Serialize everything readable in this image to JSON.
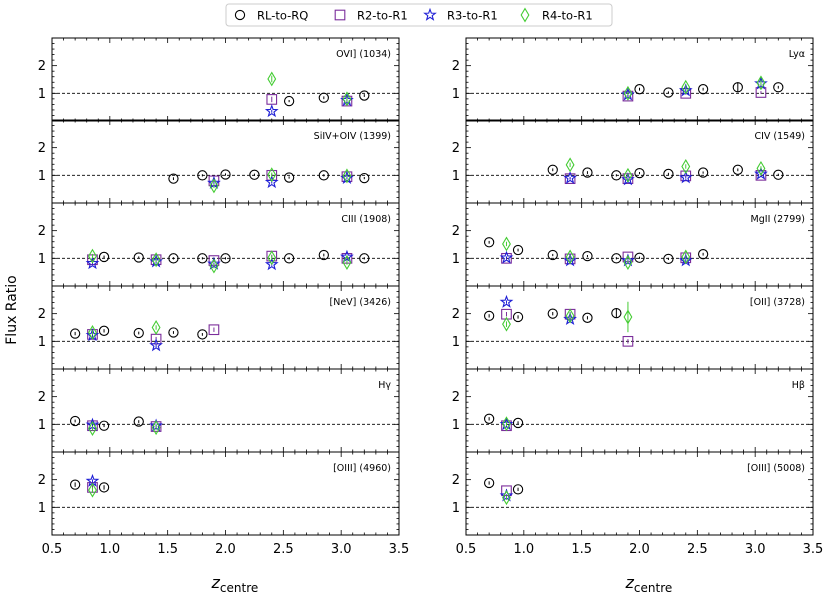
{
  "chart_data": {
    "type": "scatter",
    "ylabel": "Flux Ratio",
    "xlabel": "z",
    "xlabel_sub": "centre",
    "xlim": [
      0.5,
      3.5
    ],
    "ylim": [
      0,
      3
    ],
    "xticks": [
      "0.5",
      "1.0",
      "1.5",
      "2.0",
      "2.5",
      "3.0",
      "3.5"
    ],
    "yticks": [
      "1",
      "2"
    ],
    "reference_line": 1,
    "legend": {
      "position": "top-center",
      "entries": [
        {
          "label": "RL-to-RQ",
          "marker": "circle",
          "color": "#000000"
        },
        {
          "label": "R2-to-R1",
          "marker": "square",
          "color": "#7b2d9b"
        },
        {
          "label": "R3-to-R1",
          "marker": "star",
          "color": "#1f1fd6"
        },
        {
          "label": "R4-to-R1",
          "marker": "diamond",
          "color": "#44cc33"
        }
      ]
    },
    "panels": [
      {
        "label": "OVI] (1034)",
        "col": 0,
        "row": 0,
        "series": {
          "RL-to-RQ": [
            [
              2.55,
              0.72,
              0.04
            ],
            [
              2.85,
              0.84,
              0.05
            ],
            [
              3.2,
              0.92,
              0.05
            ]
          ],
          "R2-to-R1": [
            [
              2.4,
              0.78,
              0.1
            ],
            [
              3.05,
              0.72,
              0.08
            ]
          ],
          "R3-to-R1": [
            [
              2.4,
              0.35,
              0.05
            ],
            [
              3.05,
              0.75,
              0.05
            ]
          ],
          "R4-to-R1": [
            [
              2.4,
              1.52,
              0.12
            ],
            [
              3.05,
              0.8,
              0.1
            ]
          ]
        }
      },
      {
        "label": "Lyα",
        "col": 1,
        "row": 0,
        "series": {
          "RL-to-RQ": [
            [
              2.0,
              1.15,
              0.05
            ],
            [
              2.25,
              1.03,
              0.04
            ],
            [
              2.55,
              1.15,
              0.05
            ],
            [
              2.85,
              1.22,
              0.18
            ],
            [
              3.2,
              1.22,
              0.05
            ]
          ],
          "R2-to-R1": [
            [
              1.9,
              0.9,
              0.05
            ],
            [
              2.4,
              1.0,
              0.05
            ],
            [
              3.05,
              1.03,
              0.05
            ]
          ],
          "R3-to-R1": [
            [
              1.9,
              0.95,
              0.05
            ],
            [
              2.4,
              1.1,
              0.05
            ],
            [
              3.05,
              1.35,
              0.05
            ]
          ],
          "R4-to-R1": [
            [
              1.9,
              1.0,
              0.06
            ],
            [
              2.4,
              1.22,
              0.08
            ],
            [
              3.05,
              1.38,
              0.1
            ]
          ]
        }
      },
      {
        "label": "SiIV+OIV (1399)",
        "col": 0,
        "row": 1,
        "series": {
          "RL-to-RQ": [
            [
              1.55,
              0.88,
              0.05
            ],
            [
              1.8,
              1.0,
              0.04
            ],
            [
              2.0,
              1.03,
              0.04
            ],
            [
              2.25,
              1.02,
              0.04
            ],
            [
              2.55,
              0.92,
              0.04
            ],
            [
              2.85,
              1.0,
              0.04
            ],
            [
              3.2,
              0.9,
              0.04
            ]
          ],
          "R2-to-R1": [
            [
              1.9,
              0.8,
              0.06
            ],
            [
              2.4,
              1.0,
              0.05
            ],
            [
              3.05,
              0.95,
              0.05
            ]
          ],
          "R3-to-R1": [
            [
              1.9,
              0.72,
              0.05
            ],
            [
              2.4,
              0.75,
              0.05
            ],
            [
              3.05,
              0.9,
              0.05
            ]
          ],
          "R4-to-R1": [
            [
              1.9,
              0.62,
              0.08
            ],
            [
              2.4,
              1.02,
              0.08
            ],
            [
              3.05,
              0.98,
              0.06
            ]
          ]
        }
      },
      {
        "label": "CIV (1549)",
        "col": 1,
        "row": 1,
        "series": {
          "RL-to-RQ": [
            [
              1.25,
              1.2,
              0.05
            ],
            [
              1.55,
              1.1,
              0.05
            ],
            [
              1.8,
              1.0,
              0.04
            ],
            [
              2.0,
              1.08,
              0.04
            ],
            [
              2.25,
              1.05,
              0.04
            ],
            [
              2.55,
              1.1,
              0.04
            ],
            [
              2.85,
              1.2,
              0.05
            ],
            [
              3.2,
              1.02,
              0.04
            ]
          ],
          "R2-to-R1": [
            [
              1.4,
              0.88,
              0.04
            ],
            [
              1.9,
              0.88,
              0.04
            ],
            [
              2.4,
              0.98,
              0.04
            ],
            [
              3.05,
              1.0,
              0.04
            ]
          ],
          "R3-to-R1": [
            [
              1.4,
              0.9,
              0.04
            ],
            [
              1.9,
              0.85,
              0.04
            ],
            [
              2.4,
              0.92,
              0.04
            ],
            [
              3.05,
              1.05,
              0.04
            ]
          ],
          "R4-to-R1": [
            [
              1.4,
              1.38,
              0.08
            ],
            [
              1.9,
              1.0,
              0.06
            ],
            [
              2.4,
              1.32,
              0.08
            ],
            [
              3.05,
              1.25,
              0.08
            ]
          ]
        }
      },
      {
        "label": "CIII (1908)",
        "col": 0,
        "row": 2,
        "series": {
          "RL-to-RQ": [
            [
              0.95,
              1.05,
              0.05
            ],
            [
              1.25,
              1.03,
              0.04
            ],
            [
              1.55,
              1.0,
              0.04
            ],
            [
              1.8,
              1.0,
              0.04
            ],
            [
              2.0,
              1.0,
              0.04
            ],
            [
              2.55,
              1.0,
              0.04
            ],
            [
              2.85,
              1.12,
              0.05
            ],
            [
              3.2,
              1.0,
              0.04
            ]
          ],
          "R2-to-R1": [
            [
              0.85,
              0.95,
              0.05
            ],
            [
              1.4,
              0.95,
              0.05
            ],
            [
              1.9,
              0.92,
              0.05
            ],
            [
              2.4,
              1.08,
              0.05
            ],
            [
              3.05,
              1.0,
              0.05
            ]
          ],
          "R3-to-R1": [
            [
              0.85,
              0.82,
              0.05
            ],
            [
              1.4,
              0.88,
              0.05
            ],
            [
              1.9,
              0.8,
              0.05
            ],
            [
              2.4,
              0.78,
              0.05
            ],
            [
              3.05,
              1.05,
              0.05
            ]
          ],
          "R4-to-R1": [
            [
              0.85,
              1.08,
              0.08
            ],
            [
              1.4,
              0.95,
              0.08
            ],
            [
              1.9,
              0.72,
              0.08
            ],
            [
              2.4,
              1.02,
              0.08
            ],
            [
              3.05,
              0.85,
              0.08
            ]
          ]
        }
      },
      {
        "label": "MgII (2799)",
        "col": 1,
        "row": 2,
        "series": {
          "RL-to-RQ": [
            [
              0.7,
              1.58,
              0.05
            ],
            [
              0.95,
              1.3,
              0.05
            ],
            [
              1.25,
              1.12,
              0.04
            ],
            [
              1.55,
              1.08,
              0.04
            ],
            [
              1.8,
              1.0,
              0.04
            ],
            [
              2.0,
              1.02,
              0.04
            ],
            [
              2.25,
              0.98,
              0.04
            ],
            [
              2.55,
              1.15,
              0.05
            ]
          ],
          "R2-to-R1": [
            [
              0.85,
              1.0,
              0.05
            ],
            [
              1.4,
              0.98,
              0.05
            ],
            [
              1.9,
              1.05,
              0.05
            ],
            [
              2.4,
              1.02,
              0.05
            ]
          ],
          "R3-to-R1": [
            [
              0.85,
              1.02,
              0.05
            ],
            [
              1.4,
              0.92,
              0.05
            ],
            [
              1.9,
              0.92,
              0.05
            ],
            [
              2.4,
              0.92,
              0.05
            ]
          ],
          "R4-to-R1": [
            [
              0.85,
              1.52,
              0.08
            ],
            [
              1.4,
              1.05,
              0.06
            ],
            [
              1.9,
              0.85,
              0.06
            ],
            [
              2.4,
              1.05,
              0.06
            ]
          ]
        }
      },
      {
        "label": "[NeV] (3426)",
        "col": 0,
        "row": 3,
        "series": {
          "RL-to-RQ": [
            [
              0.7,
              1.28,
              0.06
            ],
            [
              0.95,
              1.38,
              0.06
            ],
            [
              1.25,
              1.3,
              0.05
            ],
            [
              1.55,
              1.32,
              0.05
            ],
            [
              1.8,
              1.25,
              0.05
            ]
          ],
          "R2-to-R1": [
            [
              0.85,
              1.25,
              0.08
            ],
            [
              1.4,
              1.08,
              0.08
            ],
            [
              1.9,
              1.42,
              0.08
            ]
          ],
          "R3-to-R1": [
            [
              0.85,
              1.22,
              0.06
            ],
            [
              1.4,
              0.85,
              0.06
            ]
          ],
          "R4-to-R1": [
            [
              0.85,
              1.32,
              0.08
            ],
            [
              1.4,
              1.5,
              0.08
            ]
          ]
        }
      },
      {
        "label": "[OII] (3728)",
        "col": 1,
        "row": 3,
        "series": {
          "RL-to-RQ": [
            [
              0.7,
              1.92,
              0.06
            ],
            [
              0.95,
              1.88,
              0.06
            ],
            [
              1.25,
              2.0,
              0.06
            ],
            [
              1.55,
              1.85,
              0.06
            ],
            [
              1.8,
              2.02,
              0.18
            ]
          ],
          "R2-to-R1": [
            [
              0.85,
              1.98,
              0.08
            ],
            [
              1.4,
              1.98,
              0.08
            ],
            [
              1.9,
              1.0,
              0.08
            ]
          ],
          "R3-to-R1": [
            [
              0.85,
              2.42,
              0.06
            ],
            [
              1.4,
              1.8,
              0.06
            ]
          ],
          "R4-to-R1": [
            [
              0.85,
              1.62,
              0.1
            ],
            [
              1.4,
              1.92,
              0.1
            ],
            [
              1.9,
              1.88,
              0.55
            ]
          ]
        }
      },
      {
        "label": "Hγ",
        "col": 0,
        "row": 4,
        "series": {
          "RL-to-RQ": [
            [
              0.7,
              1.12,
              0.05
            ],
            [
              0.95,
              0.95,
              0.05
            ],
            [
              1.25,
              1.1,
              0.05
            ]
          ],
          "R2-to-R1": [
            [
              0.85,
              0.95,
              0.06
            ],
            [
              1.4,
              0.92,
              0.06
            ]
          ],
          "R3-to-R1": [
            [
              0.85,
              0.98,
              0.05
            ],
            [
              1.4,
              0.95,
              0.05
            ]
          ],
          "R4-to-R1": [
            [
              0.85,
              0.85,
              0.08
            ],
            [
              1.4,
              0.88,
              0.08
            ]
          ]
        }
      },
      {
        "label": "Hβ",
        "col": 1,
        "row": 4,
        "series": {
          "RL-to-RQ": [
            [
              0.7,
              1.2,
              0.06
            ],
            [
              0.95,
              1.05,
              0.06
            ]
          ],
          "R2-to-R1": [
            [
              0.85,
              0.95,
              0.06
            ]
          ],
          "R3-to-R1": [
            [
              0.85,
              1.0,
              0.05
            ]
          ],
          "R4-to-R1": [
            [
              0.85,
              1.02,
              0.08
            ]
          ]
        }
      },
      {
        "label": "[OIII] (4960)",
        "col": 0,
        "row": 5,
        "series": {
          "RL-to-RQ": [
            [
              0.7,
              1.82,
              0.08
            ],
            [
              0.95,
              1.72,
              0.08
            ]
          ],
          "R2-to-R1": [
            [
              0.85,
              1.72,
              0.08
            ]
          ],
          "R3-to-R1": [
            [
              0.85,
              1.95,
              0.06
            ]
          ],
          "R4-to-R1": [
            [
              0.85,
              1.62,
              0.1
            ]
          ]
        }
      },
      {
        "label": "[OIII] (5008)",
        "col": 1,
        "row": 5,
        "series": {
          "RL-to-RQ": [
            [
              0.7,
              1.88,
              0.06
            ],
            [
              0.95,
              1.65,
              0.06
            ]
          ],
          "R2-to-R1": [
            [
              0.85,
              1.6,
              0.06
            ]
          ],
          "R3-to-R1": [
            [
              0.85,
              1.42,
              0.05
            ]
          ],
          "R4-to-R1": [
            [
              0.85,
              1.35,
              0.08
            ]
          ]
        }
      }
    ]
  }
}
